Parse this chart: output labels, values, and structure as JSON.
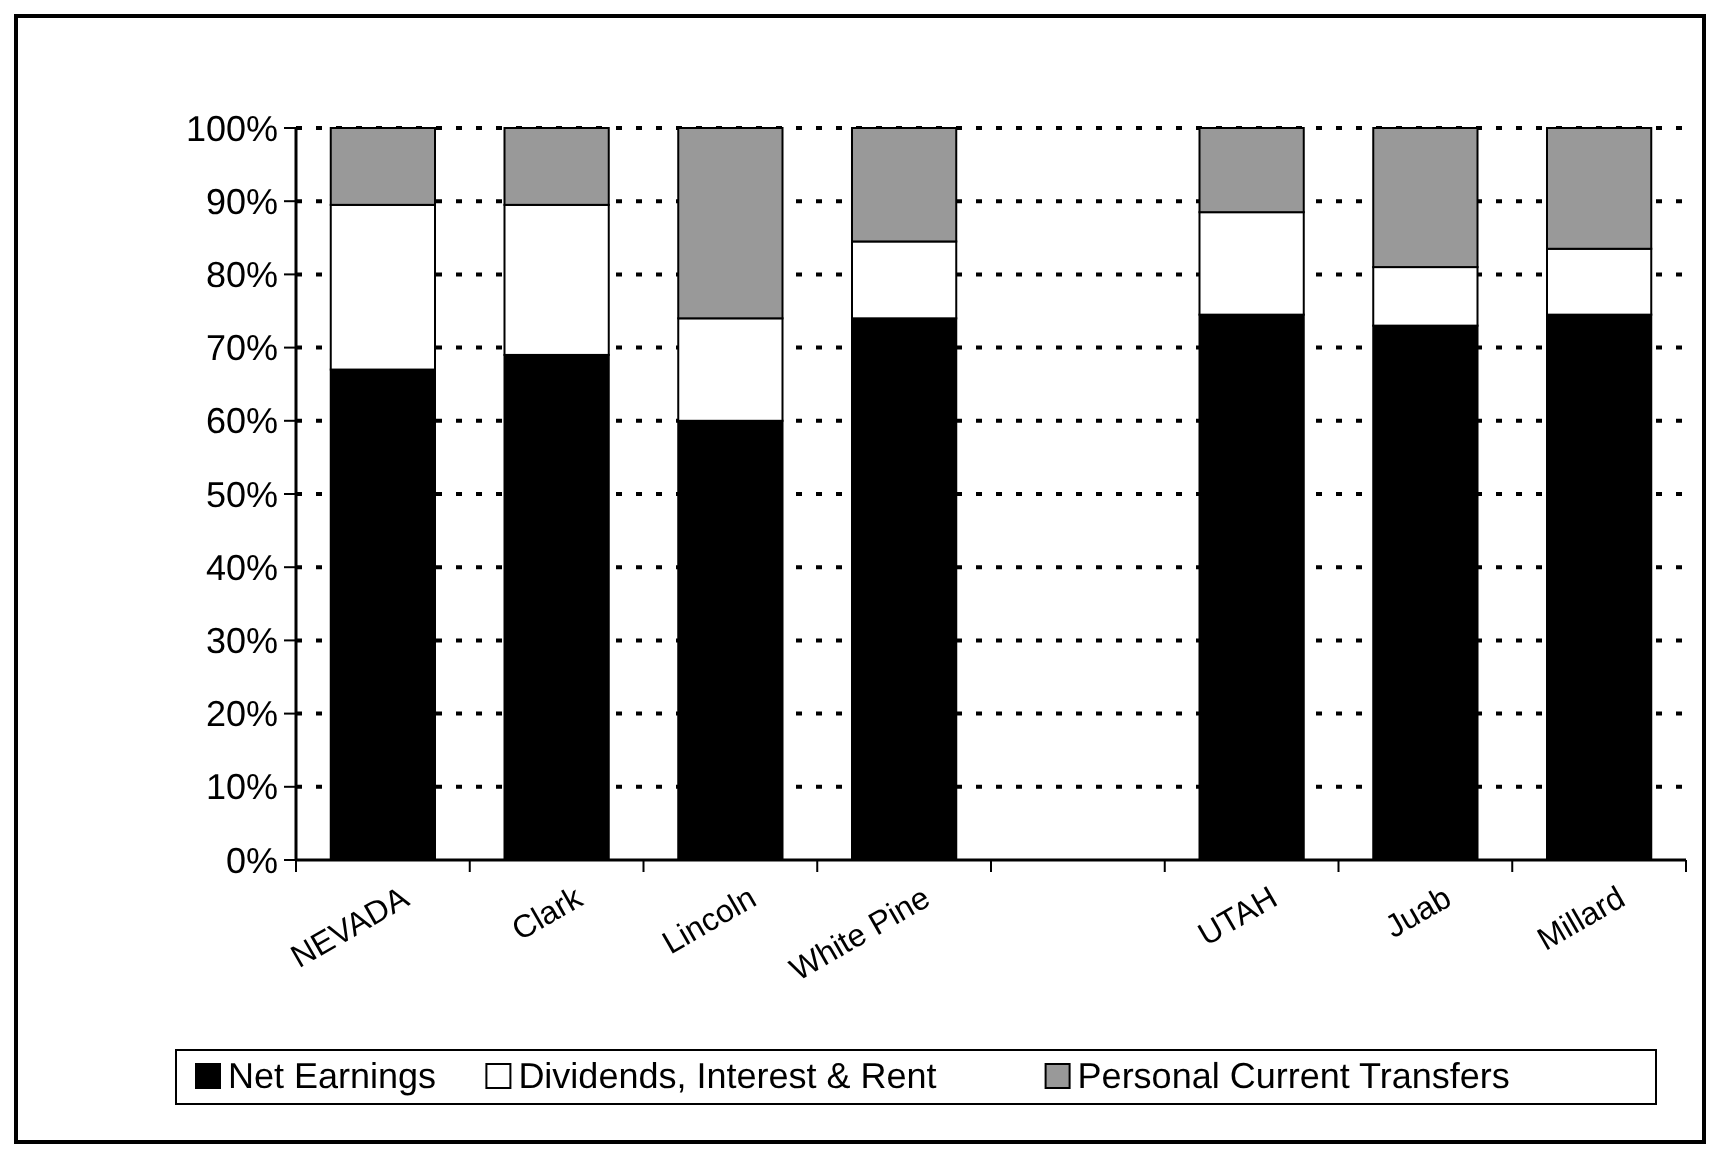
{
  "chart_data": {
    "type": "bar",
    "stacked": true,
    "categories": [
      "NEVADA",
      "Clark",
      "Lincoln",
      "White Pine",
      null,
      "UTAH",
      "Juab",
      "Millard"
    ],
    "series": [
      {
        "name": "Net Earnings",
        "color": "#000000",
        "values": [
          67,
          69,
          60,
          74,
          null,
          74.5,
          73,
          74.5
        ]
      },
      {
        "name": "Dividends, Interest & Rent",
        "color": "#ffffff",
        "values": [
          22.5,
          20.5,
          14,
          10.5,
          null,
          14,
          8,
          9
        ]
      },
      {
        "name": "Personal Current Transfers",
        "color": "#999999",
        "values": [
          10.5,
          10.5,
          26,
          15.5,
          null,
          11.5,
          19,
          16.5
        ]
      }
    ],
    "ylim": [
      0,
      100
    ],
    "yticks": [
      {
        "value": 0,
        "label": "0%"
      },
      {
        "value": 10,
        "label": "10%"
      },
      {
        "value": 20,
        "label": "20%"
      },
      {
        "value": 30,
        "label": "30%"
      },
      {
        "value": 40,
        "label": "40%"
      },
      {
        "value": 50,
        "label": "50%"
      },
      {
        "value": 60,
        "label": "60%"
      },
      {
        "value": 70,
        "label": "70%"
      },
      {
        "value": 80,
        "label": "80%"
      },
      {
        "value": 90,
        "label": "90%"
      },
      {
        "value": 100,
        "label": "100%"
      }
    ],
    "grid": "y",
    "legend": "bottom"
  }
}
